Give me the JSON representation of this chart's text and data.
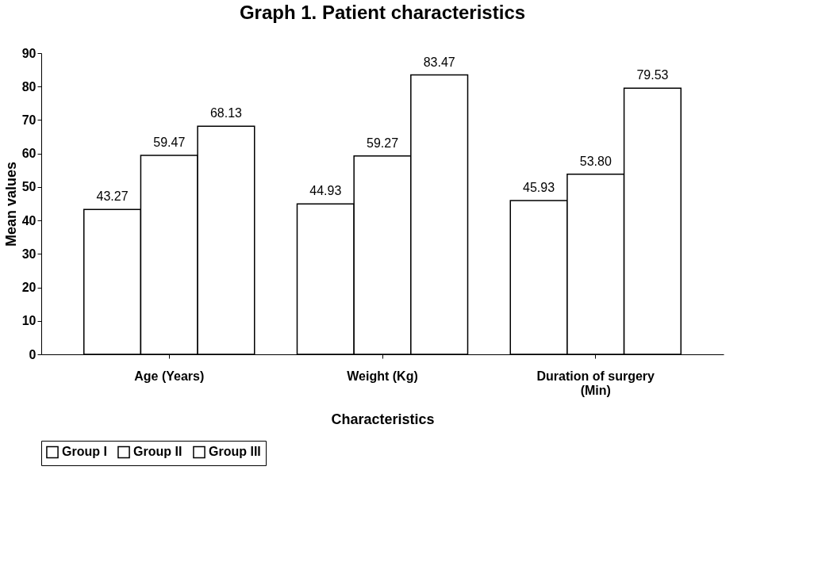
{
  "chart_data": {
    "type": "bar",
    "title": "Graph 1. Patient characteristics",
    "xlabel": "Characteristics",
    "ylabel": "Mean values",
    "categories": [
      "Age (Years)",
      "Weight (Kg)",
      "Duration of surgery (Min)"
    ],
    "series": [
      {
        "name": "Group I",
        "color": "#ffffff",
        "values": [
          43.27,
          44.93,
          45.93
        ],
        "value_labels": [
          "43.27",
          "44.93",
          "45.93"
        ]
      },
      {
        "name": "Group II",
        "color": "#ffffff",
        "values": [
          59.47,
          59.27,
          53.8
        ],
        "value_labels": [
          "59.47",
          "59.27",
          "53.80"
        ]
      },
      {
        "name": "Group III",
        "color": "#ffffff",
        "values": [
          68.13,
          83.47,
          79.53
        ],
        "value_labels": [
          "68.13",
          "83.47",
          "79.53"
        ]
      }
    ],
    "ylim": [
      0,
      90
    ],
    "yticks": [
      0,
      10,
      20,
      30,
      40,
      50,
      60,
      70,
      80,
      90
    ],
    "grid": false,
    "legend": "bottom"
  }
}
